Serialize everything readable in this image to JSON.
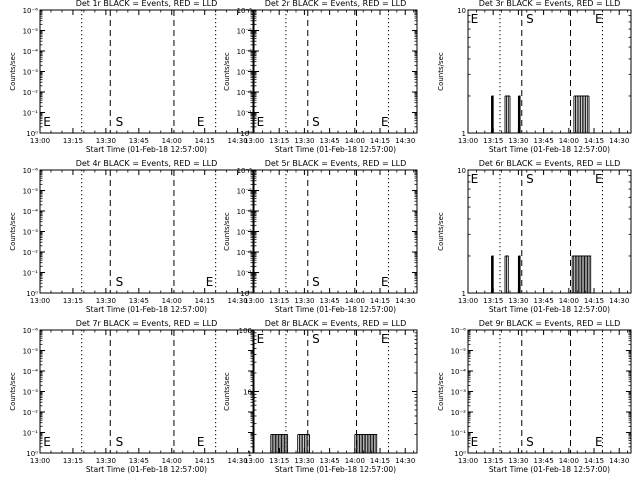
{
  "figure": {
    "background": "#ffffff",
    "ink": "#000000",
    "event_color": "#000000",
    "lld_color": "#ff0000"
  },
  "chart_data": [
    {
      "type": "line",
      "title": "Det 1r BLACK = Events, RED = LLD",
      "xlabel": "Start Time (01-Feb-18 12:57:00)",
      "ylabel": "Counts/sec",
      "x_ticks": [
        "13:00",
        "13:15",
        "13:30",
        "13:45",
        "14:00",
        "14:15",
        "14:30"
      ],
      "xlim": [
        "13:00",
        "14:37"
      ],
      "y_scale": "log",
      "y_ticks": [
        "10⁰",
        "10⁻¹",
        "10⁻²",
        "10⁻³",
        "10⁻⁴",
        "10⁻⁵",
        "10⁻⁶"
      ],
      "dotted_lines": [
        "13:19",
        "14:20"
      ],
      "dashed_lines": [
        "13:32",
        "14:01"
      ],
      "markers": [
        {
          "label": "E",
          "x": "13:01"
        },
        {
          "label": "S",
          "x": "13:34"
        },
        {
          "label": "E",
          "x": "14:11"
        }
      ],
      "marker_level": "bottom",
      "series": []
    },
    {
      "type": "line",
      "title": "Det 2r BLACK = Events, RED = LLD",
      "xlabel": "Start Time (01-Feb-18 12:57:00)",
      "ylabel": "Counts/sec",
      "x_ticks": [
        "13:00",
        "13:15",
        "13:30",
        "13:45",
        "14:00",
        "14:15",
        "14:30"
      ],
      "xlim": [
        "13:00",
        "14:37"
      ],
      "y_scale": "log",
      "y_ticks": [
        "10⁰",
        "10⁻¹",
        "10⁻²",
        "10⁻³",
        "10⁻⁴",
        "10⁻⁵",
        "10⁻⁶"
      ],
      "dotted_lines": [
        "13:19",
        "14:20"
      ],
      "dashed_lines": [
        "13:32",
        "14:01"
      ],
      "markers": [
        {
          "label": "E",
          "x": "13:01"
        },
        {
          "label": "S",
          "x": "13:34"
        },
        {
          "label": "E",
          "x": "14:15"
        }
      ],
      "marker_level": "bottom",
      "series": []
    },
    {
      "type": "line",
      "title": "Det 3r BLACK = Events, RED = LLD",
      "xlabel": "Start Time (01-Feb-18 12:57:00)",
      "ylabel": "Counts/sec",
      "x_ticks": [
        "13:00",
        "13:15",
        "13:30",
        "13:45",
        "14:00",
        "14:15",
        "14:30"
      ],
      "xlim": [
        "13:00",
        "14:37"
      ],
      "y_scale": "log",
      "y_ticks": [
        "1",
        "10"
      ],
      "ylim": [
        1,
        10
      ],
      "dotted_lines": [
        "13:19",
        "14:20"
      ],
      "dashed_lines": [
        "13:32",
        "14:01"
      ],
      "markers": [
        {
          "label": "E",
          "x": "13:01"
        },
        {
          "label": "S",
          "x": "13:34"
        },
        {
          "label": "E",
          "x": "14:15"
        }
      ],
      "marker_level": "top",
      "series": [
        {
          "bursts": [
            {
              "start": "13:14",
              "end": "13:15"
            },
            {
              "start": "13:22",
              "end": "13:25"
            },
            {
              "start": "13:30",
              "end": "13:31"
            },
            {
              "start": "14:03",
              "end": "14:12"
            }
          ],
          "level": 2
        }
      ]
    },
    {
      "type": "line",
      "title": "Det 4r BLACK = Events, RED = LLD",
      "xlabel": "Start Time (01-Feb-18 12:57:00)",
      "ylabel": "Counts/sec",
      "x_ticks": [
        "13:00",
        "13:15",
        "13:30",
        "13:45",
        "14:00",
        "14:15",
        "14:30"
      ],
      "xlim": [
        "13:00",
        "14:37"
      ],
      "y_scale": "log",
      "y_ticks": [
        "10⁰",
        "10⁻¹",
        "10⁻²",
        "10⁻³",
        "10⁻⁴",
        "10⁻⁵",
        "10⁻⁶"
      ],
      "dotted_lines": [
        "13:19",
        "14:20"
      ],
      "dashed_lines": [
        "13:32",
        "14:01"
      ],
      "markers": [
        {
          "label": "S",
          "x": "13:34"
        },
        {
          "label": "E",
          "x": "14:15"
        }
      ],
      "marker_level": "bottom",
      "series": []
    },
    {
      "type": "line",
      "title": "Det 5r BLACK = Events, RED = LLD",
      "xlabel": "Start Time (01-Feb-18 12:57:00)",
      "ylabel": "Counts/sec",
      "x_ticks": [
        "13:00",
        "13:15",
        "13:30",
        "13:45",
        "14:00",
        "14:15",
        "14:30"
      ],
      "xlim": [
        "13:00",
        "14:37"
      ],
      "y_scale": "log",
      "y_ticks": [
        "10⁰",
        "10⁻¹",
        "10⁻²",
        "10⁻³",
        "10⁻⁴",
        "10⁻⁵",
        "10⁻⁶"
      ],
      "dotted_lines": [
        "13:19",
        "14:20"
      ],
      "dashed_lines": [
        "13:32",
        "14:01"
      ],
      "markers": [
        {
          "label": "S",
          "x": "13:34"
        },
        {
          "label": "E",
          "x": "14:15"
        }
      ],
      "marker_level": "bottom",
      "series": []
    },
    {
      "type": "line",
      "title": "Det 6r BLACK = Events, RED = LLD",
      "xlabel": "Start Time (01-Feb-18 12:57:00)",
      "ylabel": "Counts/sec",
      "x_ticks": [
        "13:00",
        "13:15",
        "13:30",
        "13:45",
        "14:00",
        "14:15",
        "14:30"
      ],
      "xlim": [
        "13:00",
        "14:37"
      ],
      "y_scale": "log",
      "y_ticks": [
        "1",
        "10"
      ],
      "ylim": [
        1,
        10
      ],
      "dotted_lines": [
        "13:19",
        "14:20"
      ],
      "dashed_lines": [
        "13:32",
        "14:01"
      ],
      "markers": [
        {
          "label": "E",
          "x": "13:01"
        },
        {
          "label": "S",
          "x": "13:34"
        },
        {
          "label": "E",
          "x": "14:15"
        }
      ],
      "marker_level": "top",
      "series": [
        {
          "bursts": [
            {
              "start": "13:14",
              "end": "13:15"
            },
            {
              "start": "13:22",
              "end": "13:24"
            },
            {
              "start": "13:30",
              "end": "13:31"
            },
            {
              "start": "14:02",
              "end": "14:13"
            }
          ],
          "level": 2
        }
      ]
    },
    {
      "type": "line",
      "title": "Det 7r BLACK = Events, RED = LLD",
      "xlabel": "Start Time (01-Feb-18 12:57:00)",
      "ylabel": "Counts/sec",
      "x_ticks": [
        "13:00",
        "13:15",
        "13:30",
        "13:45",
        "14:00",
        "14:15",
        "14:30"
      ],
      "xlim": [
        "13:00",
        "14:37"
      ],
      "y_scale": "log",
      "y_ticks": [
        "10⁰",
        "10⁻¹",
        "10⁻²",
        "10⁻³",
        "10⁻⁴",
        "10⁻⁵",
        "10⁻⁶"
      ],
      "dotted_lines": [
        "13:19",
        "14:20"
      ],
      "dashed_lines": [
        "13:32",
        "14:01"
      ],
      "markers": [
        {
          "label": "E",
          "x": "13:01"
        },
        {
          "label": "S",
          "x": "13:34"
        },
        {
          "label": "E",
          "x": "14:11"
        }
      ],
      "marker_level": "bottom",
      "series": []
    },
    {
      "type": "line",
      "title": "Det 8r BLACK = Events, RED = LLD",
      "xlabel": "Start Time (01-Feb-18 12:57:00)",
      "ylabel": "Counts/sec",
      "x_ticks": [
        "13:00",
        "13:15",
        "13:30",
        "13:45",
        "14:00",
        "14:15",
        "14:30"
      ],
      "xlim": [
        "13:00",
        "14:37"
      ],
      "y_scale": "log",
      "y_ticks": [
        "1",
        "10",
        "100"
      ],
      "ylim": [
        1,
        100
      ],
      "dotted_lines": [
        "13:19",
        "14:20"
      ],
      "dashed_lines": [
        "13:32",
        "14:01"
      ],
      "markers": [
        {
          "label": "E",
          "x": "13:01"
        },
        {
          "label": "S",
          "x": "13:34"
        },
        {
          "label": "E",
          "x": "14:15"
        }
      ],
      "marker_level": "top",
      "series": [
        {
          "bursts": [
            {
              "start": "13:10",
              "end": "13:20"
            },
            {
              "start": "13:26",
              "end": "13:33"
            },
            {
              "start": "14:00",
              "end": "14:13"
            }
          ],
          "level": 2
        }
      ]
    },
    {
      "type": "line",
      "title": "Det 9r BLACK = Events, RED = LLD",
      "xlabel": "Start Time (01-Feb-18 12:57:00)",
      "ylabel": "Counts/sec",
      "x_ticks": [
        "13:00",
        "13:15",
        "13:30",
        "13:45",
        "14:00",
        "14:15",
        "14:30"
      ],
      "xlim": [
        "13:00",
        "14:37"
      ],
      "y_scale": "log",
      "y_ticks": [
        "10⁰",
        "10⁻¹",
        "10⁻²",
        "10⁻³",
        "10⁻⁴",
        "10⁻⁵",
        "10⁻⁶"
      ],
      "dotted_lines": [
        "13:19",
        "14:20"
      ],
      "dashed_lines": [
        "13:32",
        "14:01"
      ],
      "markers": [
        {
          "label": "E",
          "x": "13:01"
        },
        {
          "label": "S",
          "x": "13:34"
        },
        {
          "label": "E",
          "x": "14:15"
        }
      ],
      "marker_level": "bottom",
      "series": []
    }
  ]
}
